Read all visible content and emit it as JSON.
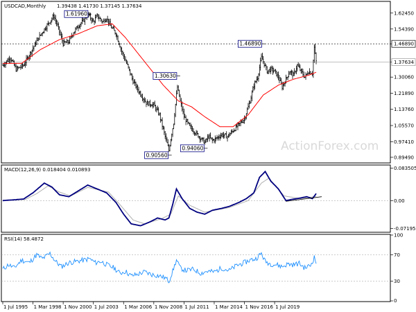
{
  "chart_data": {
    "type": "candlestick",
    "symbol_label": "USDCAD,Monthly",
    "ohlc_label": "1.39438 1.41730 1.37145 1.37634",
    "watermark": "ActionForex.com",
    "colors": {
      "candle": "#000000",
      "sma": "#ff0000",
      "macd": "#000080",
      "signal": "#b0b0b0",
      "rsi": "#1e90ff"
    },
    "price_axis": {
      "ylim": [
        0.87,
        1.68
      ],
      "ticks": [
        "1.62450",
        "1.54390",
        "1.46890",
        "1.37634",
        "1.30060",
        "1.21890",
        "1.13760",
        "1.05570",
        "0.97410",
        "0.89490"
      ],
      "tick_values": [
        1.6245,
        1.5439,
        1.4689,
        1.37634,
        1.3006,
        1.2189,
        1.1376,
        1.0557,
        0.9741,
        0.8949
      ],
      "current_price": "1.37634",
      "resistance_level": "1.46890"
    },
    "price_series": {
      "anchors": [
        {
          "t": 0,
          "v": 1.36
        },
        {
          "t": 8,
          "v": 1.4
        },
        {
          "t": 14,
          "v": 1.34
        },
        {
          "t": 22,
          "v": 1.36
        },
        {
          "t": 30,
          "v": 1.43
        },
        {
          "t": 38,
          "v": 1.5
        },
        {
          "t": 45,
          "v": 1.55
        },
        {
          "t": 54,
          "v": 1.61
        },
        {
          "t": 58,
          "v": 1.56
        },
        {
          "t": 64,
          "v": 1.47
        },
        {
          "t": 70,
          "v": 1.48
        },
        {
          "t": 74,
          "v": 1.52
        },
        {
          "t": 80,
          "v": 1.56
        },
        {
          "t": 86,
          "v": 1.59
        },
        {
          "t": 90,
          "v": 1.62
        },
        {
          "t": 96,
          "v": 1.58
        },
        {
          "t": 100,
          "v": 1.61
        },
        {
          "t": 106,
          "v": 1.58
        },
        {
          "t": 110,
          "v": 1.6
        },
        {
          "t": 114,
          "v": 1.56
        },
        {
          "t": 120,
          "v": 1.52
        },
        {
          "t": 126,
          "v": 1.43
        },
        {
          "t": 132,
          "v": 1.36
        },
        {
          "t": 138,
          "v": 1.28
        },
        {
          "t": 144,
          "v": 1.23
        },
        {
          "t": 152,
          "v": 1.17
        },
        {
          "t": 160,
          "v": 1.16
        },
        {
          "t": 166,
          "v": 1.11
        },
        {
          "t": 172,
          "v": 1.0
        },
        {
          "t": 176,
          "v": 0.93
        },
        {
          "t": 178,
          "v": 0.99
        },
        {
          "t": 181,
          "v": 1.07
        },
        {
          "t": 184,
          "v": 1.21
        },
        {
          "t": 185,
          "v": 1.25
        },
        {
          "t": 188,
          "v": 1.18
        },
        {
          "t": 192,
          "v": 1.1
        },
        {
          "t": 198,
          "v": 1.05
        },
        {
          "t": 204,
          "v": 1.02
        },
        {
          "t": 210,
          "v": 0.99
        },
        {
          "t": 214,
          "v": 0.97
        },
        {
          "t": 218,
          "v": 1.0
        },
        {
          "t": 222,
          "v": 0.98
        },
        {
          "t": 226,
          "v": 0.99
        },
        {
          "t": 232,
          "v": 1.01
        },
        {
          "t": 238,
          "v": 1.0
        },
        {
          "t": 244,
          "v": 1.03
        },
        {
          "t": 250,
          "v": 1.06
        },
        {
          "t": 256,
          "v": 1.09
        },
        {
          "t": 262,
          "v": 1.18
        },
        {
          "t": 266,
          "v": 1.26
        },
        {
          "t": 270,
          "v": 1.3
        },
        {
          "t": 274,
          "v": 1.4
        },
        {
          "t": 276,
          "v": 1.38
        },
        {
          "t": 280,
          "v": 1.33
        },
        {
          "t": 284,
          "v": 1.34
        },
        {
          "t": 288,
          "v": 1.33
        },
        {
          "t": 292,
          "v": 1.3
        },
        {
          "t": 296,
          "v": 1.25
        },
        {
          "t": 300,
          "v": 1.29
        },
        {
          "t": 304,
          "v": 1.33
        },
        {
          "t": 308,
          "v": 1.31
        },
        {
          "t": 312,
          "v": 1.36
        },
        {
          "t": 316,
          "v": 1.33
        },
        {
          "t": 320,
          "v": 1.3
        },
        {
          "t": 324,
          "v": 1.33
        },
        {
          "t": 328,
          "v": 1.32
        },
        {
          "t": 330,
          "v": 1.45
        },
        {
          "t": 332,
          "v": 1.38
        }
      ],
      "sma_anchors": [
        {
          "t": 0,
          "v": 1.37
        },
        {
          "t": 20,
          "v": 1.37
        },
        {
          "t": 40,
          "v": 1.44
        },
        {
          "t": 60,
          "v": 1.49
        },
        {
          "t": 80,
          "v": 1.52
        },
        {
          "t": 100,
          "v": 1.56
        },
        {
          "t": 116,
          "v": 1.57
        },
        {
          "t": 130,
          "v": 1.5
        },
        {
          "t": 150,
          "v": 1.38
        },
        {
          "t": 170,
          "v": 1.26
        },
        {
          "t": 186,
          "v": 1.18
        },
        {
          "t": 200,
          "v": 1.15
        },
        {
          "t": 214,
          "v": 1.1
        },
        {
          "t": 230,
          "v": 1.05
        },
        {
          "t": 244,
          "v": 1.05
        },
        {
          "t": 260,
          "v": 1.11
        },
        {
          "t": 276,
          "v": 1.21
        },
        {
          "t": 292,
          "v": 1.26
        },
        {
          "t": 308,
          "v": 1.29
        },
        {
          "t": 324,
          "v": 1.31
        },
        {
          "t": 332,
          "v": 1.325
        }
      ]
    },
    "annotations": [
      {
        "label": "1.61960",
        "t": 91,
        "v": 1.6196,
        "place": "left"
      },
      {
        "label": "1.46890",
        "t": 275,
        "v": 1.4689,
        "place": "left"
      },
      {
        "label": "1.30630",
        "t": 185,
        "v": 1.3063,
        "place": "left"
      },
      {
        "label": "0.94060",
        "t": 214,
        "v": 0.9406,
        "place": "left"
      },
      {
        "label": "0.90560",
        "t": 176,
        "v": 0.9056,
        "place": "left"
      }
    ],
    "macd": {
      "label": "MACD(12,26,9) 0.018404 0.010893",
      "ylim": [
        -0.08,
        0.09
      ],
      "ticks": [
        "0.083505",
        "0.00",
        "-0.07195"
      ],
      "tick_values": [
        0.083505,
        0.0,
        -0.07195
      ],
      "anchors": [
        {
          "t": 0,
          "v": 0.0
        },
        {
          "t": 12,
          "v": 0.002
        },
        {
          "t": 22,
          "v": 0.004
        },
        {
          "t": 32,
          "v": 0.02
        },
        {
          "t": 44,
          "v": 0.045
        },
        {
          "t": 52,
          "v": 0.035
        },
        {
          "t": 60,
          "v": 0.015
        },
        {
          "t": 70,
          "v": 0.01
        },
        {
          "t": 80,
          "v": 0.025
        },
        {
          "t": 90,
          "v": 0.04
        },
        {
          "t": 100,
          "v": 0.03
        },
        {
          "t": 110,
          "v": 0.02
        },
        {
          "t": 120,
          "v": -0.005
        },
        {
          "t": 128,
          "v": -0.035
        },
        {
          "t": 136,
          "v": -0.06
        },
        {
          "t": 146,
          "v": -0.065
        },
        {
          "t": 156,
          "v": -0.055
        },
        {
          "t": 164,
          "v": -0.045
        },
        {
          "t": 172,
          "v": -0.05
        },
        {
          "t": 176,
          "v": -0.045
        },
        {
          "t": 180,
          "v": -0.01
        },
        {
          "t": 184,
          "v": 0.03
        },
        {
          "t": 190,
          "v": 0.005
        },
        {
          "t": 198,
          "v": -0.02
        },
        {
          "t": 206,
          "v": -0.03
        },
        {
          "t": 214,
          "v": -0.035
        },
        {
          "t": 222,
          "v": -0.025
        },
        {
          "t": 232,
          "v": -0.02
        },
        {
          "t": 240,
          "v": -0.015
        },
        {
          "t": 250,
          "v": -0.005
        },
        {
          "t": 258,
          "v": 0.005
        },
        {
          "t": 266,
          "v": 0.02
        },
        {
          "t": 272,
          "v": 0.06
        },
        {
          "t": 278,
          "v": 0.075
        },
        {
          "t": 284,
          "v": 0.05
        },
        {
          "t": 292,
          "v": 0.03
        },
        {
          "t": 300,
          "v": 0.0
        },
        {
          "t": 306,
          "v": 0.003
        },
        {
          "t": 314,
          "v": 0.006
        },
        {
          "t": 322,
          "v": 0.01
        },
        {
          "t": 328,
          "v": 0.005
        },
        {
          "t": 332,
          "v": 0.018
        }
      ],
      "signal_anchors": [
        {
          "t": 0,
          "v": 0.0
        },
        {
          "t": 24,
          "v": 0.003
        },
        {
          "t": 36,
          "v": 0.018
        },
        {
          "t": 48,
          "v": 0.038
        },
        {
          "t": 60,
          "v": 0.022
        },
        {
          "t": 72,
          "v": 0.012
        },
        {
          "t": 90,
          "v": 0.034
        },
        {
          "t": 112,
          "v": 0.022
        },
        {
          "t": 124,
          "v": -0.01
        },
        {
          "t": 138,
          "v": -0.05
        },
        {
          "t": 150,
          "v": -0.06
        },
        {
          "t": 168,
          "v": -0.047
        },
        {
          "t": 178,
          "v": -0.035
        },
        {
          "t": 186,
          "v": 0.012
        },
        {
          "t": 198,
          "v": -0.012
        },
        {
          "t": 214,
          "v": -0.03
        },
        {
          "t": 240,
          "v": -0.018
        },
        {
          "t": 260,
          "v": 0.0
        },
        {
          "t": 274,
          "v": 0.045
        },
        {
          "t": 282,
          "v": 0.058
        },
        {
          "t": 298,
          "v": 0.012
        },
        {
          "t": 316,
          "v": 0.005
        },
        {
          "t": 332,
          "v": 0.011
        }
      ],
      "trendline": {
        "t0": 300,
        "v0": -0.002,
        "t1": 332,
        "v1": 0.01
      }
    },
    "rsi": {
      "label": "RSI(14) 58.4872",
      "ylim": [
        0,
        100
      ],
      "ticks": [
        "100",
        "70",
        "30",
        "0"
      ],
      "tick_values": [
        100,
        70,
        30,
        0
      ],
      "anchors": [
        {
          "t": 0,
          "v": 48
        },
        {
          "t": 6,
          "v": 55
        },
        {
          "t": 12,
          "v": 50
        },
        {
          "t": 20,
          "v": 62
        },
        {
          "t": 28,
          "v": 58
        },
        {
          "t": 36,
          "v": 70
        },
        {
          "t": 42,
          "v": 64
        },
        {
          "t": 50,
          "v": 72
        },
        {
          "t": 56,
          "v": 60
        },
        {
          "t": 62,
          "v": 52
        },
        {
          "t": 70,
          "v": 58
        },
        {
          "t": 78,
          "v": 60
        },
        {
          "t": 86,
          "v": 62
        },
        {
          "t": 92,
          "v": 64
        },
        {
          "t": 98,
          "v": 58
        },
        {
          "t": 104,
          "v": 60
        },
        {
          "t": 110,
          "v": 55
        },
        {
          "t": 118,
          "v": 50
        },
        {
          "t": 124,
          "v": 42
        },
        {
          "t": 130,
          "v": 45
        },
        {
          "t": 136,
          "v": 38
        },
        {
          "t": 142,
          "v": 40
        },
        {
          "t": 150,
          "v": 44
        },
        {
          "t": 158,
          "v": 40
        },
        {
          "t": 166,
          "v": 38
        },
        {
          "t": 172,
          "v": 35
        },
        {
          "t": 176,
          "v": 30
        },
        {
          "t": 180,
          "v": 45
        },
        {
          "t": 184,
          "v": 62
        },
        {
          "t": 188,
          "v": 50
        },
        {
          "t": 194,
          "v": 46
        },
        {
          "t": 202,
          "v": 48
        },
        {
          "t": 210,
          "v": 42
        },
        {
          "t": 216,
          "v": 45
        },
        {
          "t": 224,
          "v": 44
        },
        {
          "t": 232,
          "v": 50
        },
        {
          "t": 240,
          "v": 46
        },
        {
          "t": 248,
          "v": 54
        },
        {
          "t": 256,
          "v": 58
        },
        {
          "t": 262,
          "v": 62
        },
        {
          "t": 268,
          "v": 64
        },
        {
          "t": 274,
          "v": 72
        },
        {
          "t": 278,
          "v": 60
        },
        {
          "t": 284,
          "v": 56
        },
        {
          "t": 290,
          "v": 55
        },
        {
          "t": 296,
          "v": 52
        },
        {
          "t": 302,
          "v": 56
        },
        {
          "t": 308,
          "v": 55
        },
        {
          "t": 314,
          "v": 57
        },
        {
          "t": 320,
          "v": 50
        },
        {
          "t": 326,
          "v": 54
        },
        {
          "t": 330,
          "v": 66
        },
        {
          "t": 332,
          "v": 58
        }
      ]
    },
    "time_axis": {
      "labels": [
        "1 Jul 1995",
        "1 Mar 1998",
        "1 Nov 2000",
        "1 Jul 2003",
        "1 Mar 2006",
        "1 Nov 2008",
        "1 Jul 2011",
        "1 Mar 2014",
        "1 Nov 2016",
        "1 Jul 2019"
      ],
      "label_t": [
        0,
        32,
        64,
        96,
        128,
        160,
        192,
        224,
        256,
        288
      ]
    }
  }
}
